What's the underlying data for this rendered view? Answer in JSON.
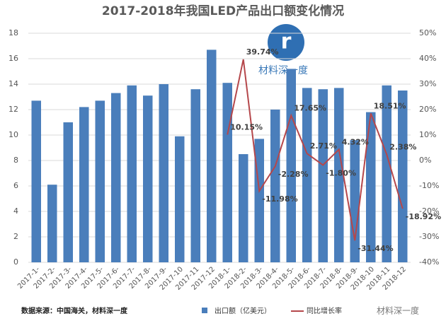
{
  "chart_data": {
    "type": "bar-line",
    "title": "2017-2018年我国LED产品出口额变化情况",
    "categories": [
      "2017-1-",
      "2017-2-",
      "2017-3-",
      "2017-4-",
      "2017-5-",
      "2017-6-",
      "2017-7-",
      "2017-8-",
      "2017-9-",
      "2017-10",
      "2017-11",
      "2017-12",
      "2018-1-",
      "2018-2-",
      "2018-3-",
      "2018-4-",
      "2018-5-",
      "2018-6-",
      "2018-7-",
      "2018-8-",
      "2018-9-",
      "2018-10",
      "2018-11",
      "2018-12"
    ],
    "series": [
      {
        "name": "出口额（亿美元）",
        "type": "bar",
        "color": "#4a7ebb",
        "values": [
          12.7,
          6.1,
          11.0,
          12.2,
          12.7,
          13.3,
          13.9,
          13.1,
          14.0,
          9.9,
          13.6,
          16.7,
          14.1,
          8.5,
          9.7,
          12.0,
          15.2,
          13.7,
          13.6,
          13.7,
          9.6,
          11.8,
          13.9,
          13.5
        ]
      },
      {
        "name": "同比增长率",
        "type": "line",
        "axis": "y2",
        "color": "#b5474b",
        "values": [
          null,
          null,
          null,
          null,
          null,
          null,
          null,
          null,
          null,
          null,
          null,
          null,
          10.15,
          39.74,
          -11.98,
          -2.28,
          17.65,
          2.71,
          -1.8,
          4.32,
          -31.44,
          18.51,
          2.38,
          -18.92
        ],
        "value_labels": [
          null,
          null,
          null,
          null,
          null,
          null,
          null,
          null,
          null,
          null,
          null,
          null,
          "10.15%",
          "39.74%",
          "-11.98%",
          "-2.28%",
          "17.65%",
          "2.71%",
          "-1.80%",
          "4.32%",
          "-31.44%",
          "18.51%",
          "2.38%",
          "-18.92%"
        ]
      }
    ],
    "ylim": [
      0,
      18
    ],
    "yticks": [
      0,
      2,
      4,
      6,
      8,
      10,
      12,
      14,
      16,
      18
    ],
    "y2lim": [
      -40,
      50
    ],
    "y2ticks": [
      {
        "value": -40,
        "label": "-40%"
      },
      {
        "value": -30,
        "label": "-30%"
      },
      {
        "value": -20,
        "label": "-20%"
      },
      {
        "value": -10,
        "label": "-10%"
      },
      {
        "value": 0,
        "label": "0%"
      },
      {
        "value": 10,
        "label": "10%"
      },
      {
        "value": 20,
        "label": "20%"
      },
      {
        "value": 30,
        "label": "30%"
      },
      {
        "value": 40,
        "label": "40%"
      },
      {
        "value": 50,
        "label": "50%"
      }
    ],
    "grid": true,
    "legend": "bottom",
    "source": "数据来源：中国海关，材料深一度",
    "watermark": "材料深一度",
    "brand": "材料深一度"
  }
}
